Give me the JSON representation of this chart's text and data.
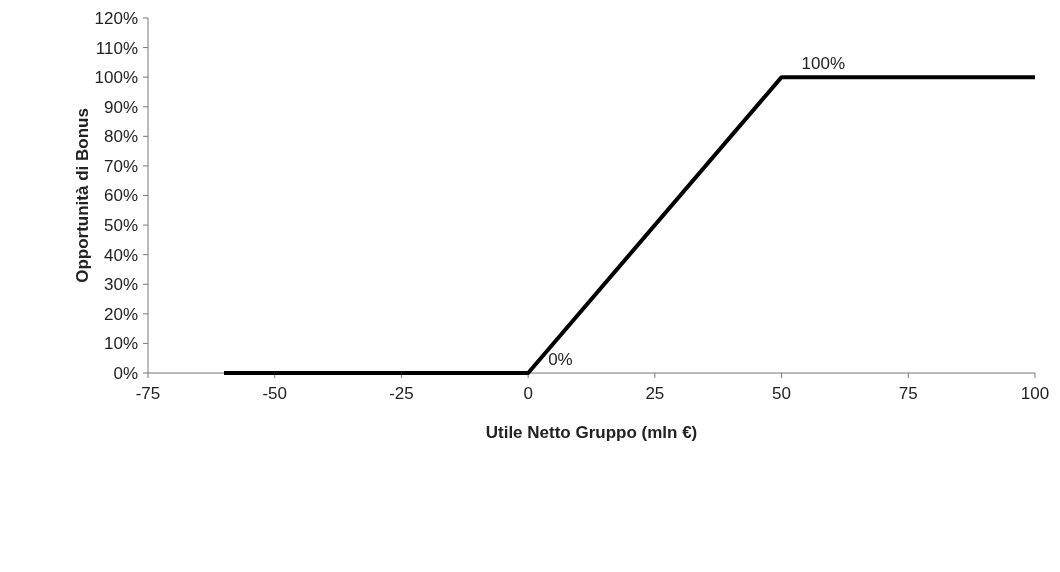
{
  "chart_data": {
    "type": "line",
    "xlabel": "Utile Netto Gruppo (mln €)",
    "ylabel": "Opportunità di Bonus",
    "x": [
      -60,
      0,
      50,
      100
    ],
    "series": [
      {
        "color": "#000000",
        "values": [
          0,
          0,
          100,
          100
        ]
      }
    ],
    "xlim": [
      -75,
      100
    ],
    "xticks": [
      -75,
      -50,
      -25,
      0,
      25,
      50,
      75,
      100
    ],
    "ylim": [
      0,
      120
    ],
    "yticks": [
      {
        "value": 0,
        "label": "0%"
      },
      {
        "value": 10,
        "label": "10%"
      },
      {
        "value": 20,
        "label": "20%"
      },
      {
        "value": 30,
        "label": "30%"
      },
      {
        "value": 40,
        "label": "40%"
      },
      {
        "value": 50,
        "label": "50%"
      },
      {
        "value": 60,
        "label": "60%"
      },
      {
        "value": 70,
        "label": "70%"
      },
      {
        "value": 80,
        "label": "80%"
      },
      {
        "value": 90,
        "label": "90%"
      },
      {
        "value": 100,
        "label": "100%"
      },
      {
        "value": 110,
        "label": "110%"
      },
      {
        "value": 120,
        "label": "120%"
      }
    ],
    "annotations": [
      {
        "text": "0%",
        "x": 0,
        "y": 0
      },
      {
        "text": "100%",
        "x": 50,
        "y": 100
      }
    ],
    "grid": false,
    "marker": "none",
    "line_style": "solid"
  }
}
